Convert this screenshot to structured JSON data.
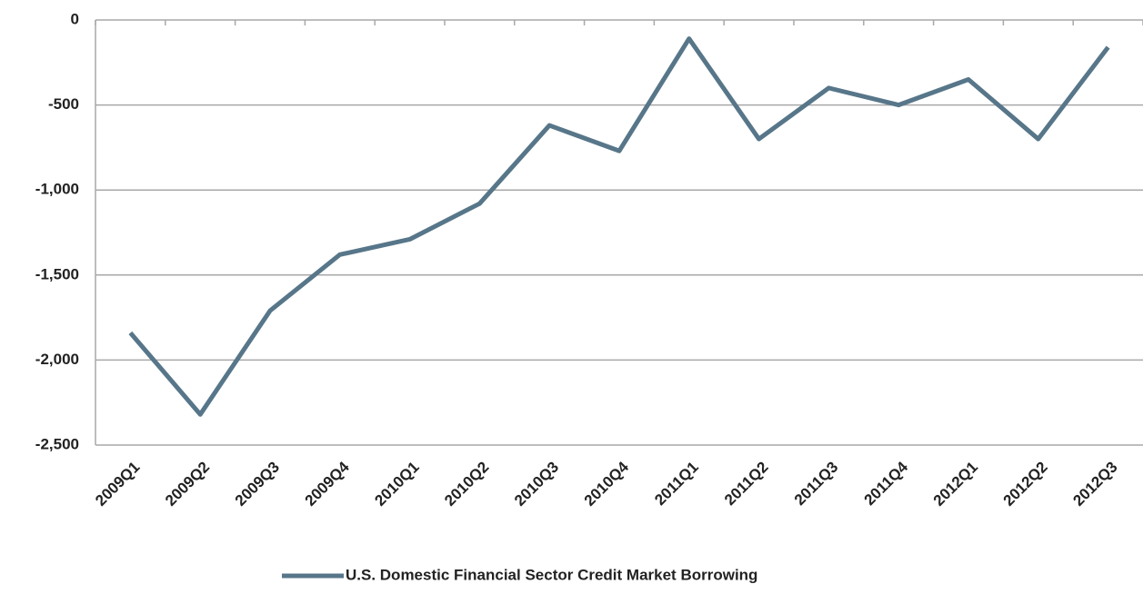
{
  "chart_data": {
    "type": "line",
    "categories": [
      "2009Q1",
      "2009Q2",
      "2009Q3",
      "2009Q4",
      "2010Q1",
      "2010Q2",
      "2010Q3",
      "2010Q4",
      "2011Q1",
      "2011Q2",
      "2011Q3",
      "2011Q4",
      "2012Q1",
      "2012Q2",
      "2012Q3"
    ],
    "series": [
      {
        "name": "U.S. Domestic Financial Sector Credit Market Borrowing",
        "color": "#577689",
        "values": [
          -1840,
          -2320,
          -1710,
          -1380,
          -1290,
          -1080,
          -620,
          -770,
          -110,
          -700,
          -400,
          -500,
          -350,
          -700,
          -160
        ]
      }
    ],
    "ylim": [
      -2500,
      0
    ],
    "yticks": [
      0,
      -500,
      {
        "value": -1000,
        "label": "-1,000"
      },
      {
        "value": -1500,
        "label": "-1,500"
      },
      {
        "value": -2000,
        "label": "-2,000"
      },
      {
        "value": -2500,
        "label": "-2,500"
      }
    ],
    "grid": true,
    "legend": "bottom"
  }
}
